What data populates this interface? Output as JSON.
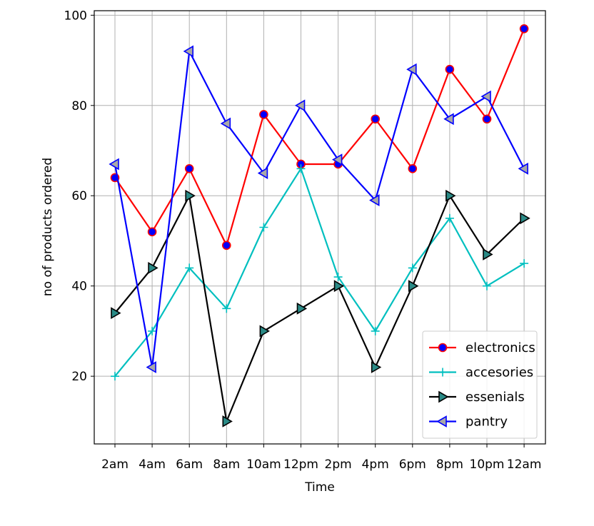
{
  "chart_data": {
    "type": "line",
    "title": "",
    "xlabel": "Time",
    "ylabel": "no of products ordered",
    "categories": [
      "2am",
      "4am",
      "6am",
      "8am",
      "10am",
      "12pm",
      "2pm",
      "4pm",
      "6pm",
      "8pm",
      "10pm",
      "12am"
    ],
    "ylim": [
      5,
      101
    ],
    "yticks": [
      20,
      40,
      60,
      80,
      100
    ],
    "grid": true,
    "legend_position": "lower-right",
    "series": [
      {
        "name": "electronics",
        "color": "#ff0000",
        "marker": "circle",
        "marker_fill": "#0000ff",
        "marker_edge": "#ff0000",
        "values": [
          64,
          52,
          66,
          49,
          78,
          67,
          67,
          77,
          66,
          88,
          77,
          97
        ]
      },
      {
        "name": "accesories",
        "color": "#00bfbf",
        "marker": "plus",
        "marker_fill": "#00bfbf",
        "marker_edge": "#00bfbf",
        "values": [
          20,
          30,
          44,
          35,
          53,
          66,
          42,
          30,
          44,
          55,
          40,
          45
        ]
      },
      {
        "name": "essenials",
        "color": "#000000",
        "marker": "triangle-right",
        "marker_fill": "#2a8a86",
        "marker_edge": "#000000",
        "values": [
          34,
          44,
          60,
          10,
          30,
          35,
          40,
          22,
          40,
          60,
          47,
          55
        ]
      },
      {
        "name": "pantry",
        "color": "#0000ff",
        "marker": "triangle-left",
        "marker_fill": "#a8a8a8",
        "marker_edge": "#0000ff",
        "values": [
          67,
          22,
          92,
          76,
          65,
          80,
          68,
          59,
          88,
          77,
          82,
          66
        ]
      }
    ]
  }
}
